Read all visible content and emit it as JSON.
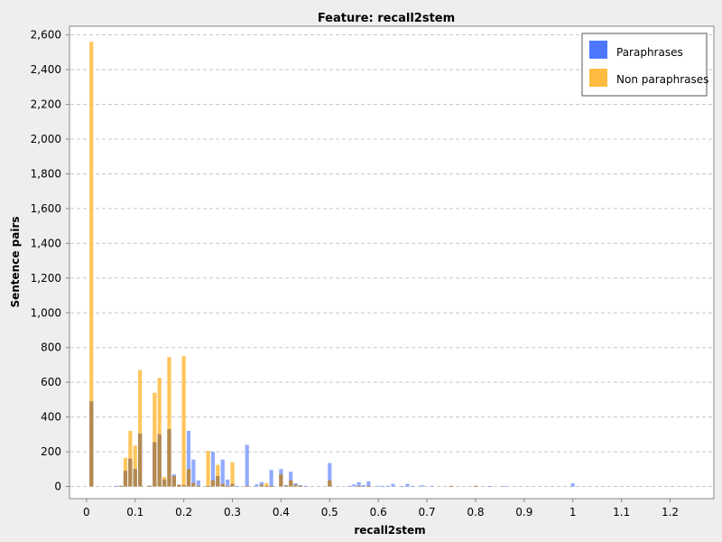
{
  "chart_data": {
    "type": "bar",
    "title": "Feature: recall2stem",
    "xlabel": "recall2stem",
    "ylabel": "Sentence pairs",
    "xlim": [
      -0.035,
      1.29
    ],
    "ylim": [
      -70,
      2650
    ],
    "x_ticks": [
      "0",
      "0.1",
      "0.2",
      "0.3",
      "0.4",
      "0.5",
      "0.6",
      "0.7",
      "0.8",
      "0.9",
      "1",
      "1.1",
      "1.2"
    ],
    "x_tick_values": [
      0,
      0.1,
      0.2,
      0.3,
      0.4,
      0.5,
      0.6,
      0.7,
      0.8,
      0.9,
      1.0,
      1.1,
      1.2
    ],
    "y_ticks": [
      "0",
      "200",
      "400",
      "600",
      "800",
      "1,000",
      "1,200",
      "1,400",
      "1,600",
      "1,800",
      "2,000",
      "2,200",
      "2,400",
      "2,600"
    ],
    "y_tick_values": [
      0,
      200,
      400,
      600,
      800,
      1000,
      1200,
      1400,
      1600,
      1800,
      2000,
      2200,
      2400,
      2600
    ],
    "grid": true,
    "legend_position": "top-right",
    "bin_width": 0.01,
    "series": [
      {
        "name": "Paraphrases",
        "color": "#4d77ff",
        "x": [
          0.01,
          0.06,
          0.07,
          0.08,
          0.09,
          0.1,
          0.11,
          0.13,
          0.14,
          0.15,
          0.16,
          0.17,
          0.18,
          0.19,
          0.2,
          0.21,
          0.22,
          0.23,
          0.25,
          0.26,
          0.27,
          0.28,
          0.29,
          0.3,
          0.31,
          0.33,
          0.35,
          0.36,
          0.37,
          0.38,
          0.4,
          0.41,
          0.42,
          0.43,
          0.44,
          0.45,
          0.5,
          0.54,
          0.55,
          0.56,
          0.57,
          0.58,
          0.6,
          0.61,
          0.62,
          0.63,
          0.65,
          0.66,
          0.67,
          0.69,
          0.71,
          0.75,
          0.8,
          0.83,
          0.86,
          1.0
        ],
        "values": [
          490,
          3,
          5,
          90,
          160,
          100,
          305,
          5,
          255,
          300,
          40,
          330,
          70,
          10,
          8,
          320,
          155,
          35,
          3,
          200,
          60,
          155,
          40,
          15,
          3,
          240,
          12,
          25,
          3,
          95,
          100,
          8,
          85,
          18,
          8,
          3,
          135,
          4,
          12,
          25,
          8,
          30,
          4,
          3,
          4,
          15,
          3,
          15,
          3,
          7,
          4,
          3,
          4,
          3,
          3,
          18
        ]
      },
      {
        "name": "Non paraphrases",
        "color": "#ffbc40",
        "x": [
          0.01,
          0.07,
          0.08,
          0.09,
          0.1,
          0.11,
          0.13,
          0.14,
          0.15,
          0.16,
          0.17,
          0.18,
          0.19,
          0.2,
          0.21,
          0.22,
          0.23,
          0.25,
          0.26,
          0.27,
          0.28,
          0.29,
          0.3,
          0.33,
          0.36,
          0.37,
          0.38,
          0.4,
          0.41,
          0.42,
          0.43,
          0.44,
          0.5,
          0.56,
          0.58,
          0.75,
          0.8
        ],
        "values": [
          2560,
          3,
          165,
          320,
          235,
          670,
          3,
          540,
          625,
          55,
          745,
          60,
          10,
          750,
          100,
          20,
          3,
          205,
          35,
          125,
          15,
          3,
          140,
          3,
          10,
          20,
          3,
          70,
          5,
          35,
          10,
          3,
          35,
          3,
          3,
          3,
          3
        ]
      }
    ]
  }
}
